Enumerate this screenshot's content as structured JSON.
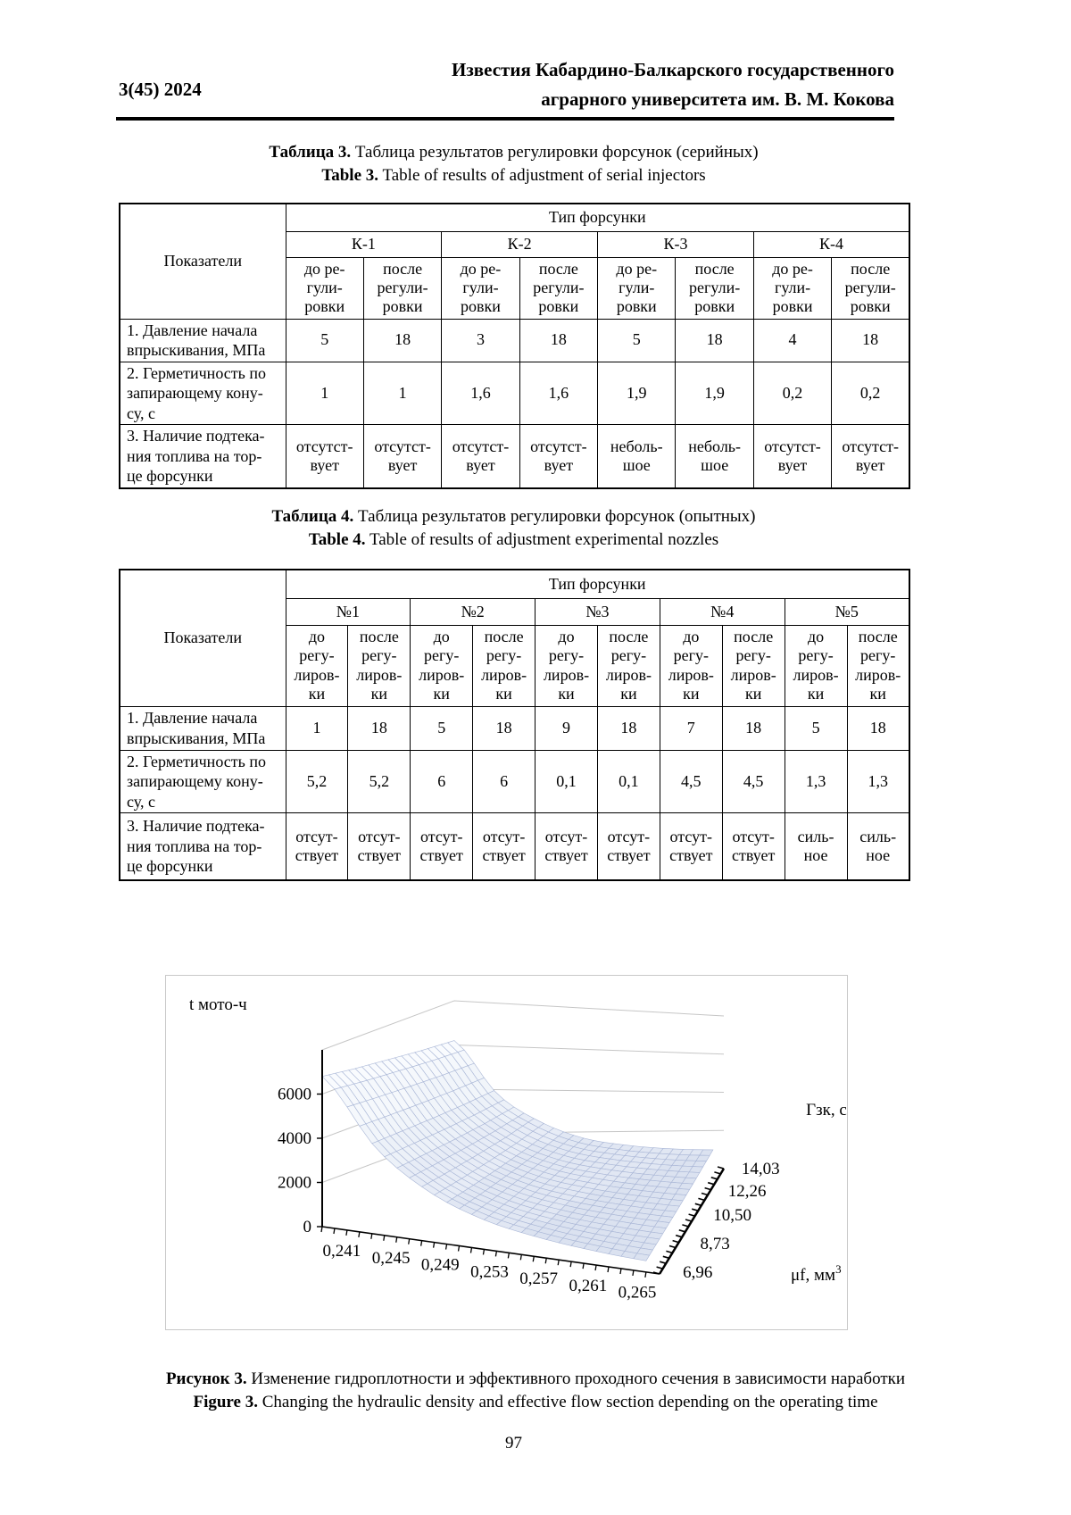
{
  "header": {
    "issue": "3(45) 2024",
    "journal_line1": "Известия Кабардино-Балкарского государственного",
    "journal_line2": "аграрного университета им. В. М. Кокова"
  },
  "table3": {
    "caption_ru_label": "Таблица 3.",
    "caption_ru_text": "Таблица результатов регулировки форсунок (серийных)",
    "caption_en_label": "Table 3.",
    "caption_en_text": "Table of results of adjustment of serial injectors",
    "stub_header": "Показатели",
    "span_header": "Тип форсунки",
    "groups": [
      "К-1",
      "К-2",
      "К-3",
      "К-4"
    ],
    "sub_headers": [
      "до ре-\nгули-\nровки",
      "после\nрегули-\nровки"
    ],
    "rows": [
      {
        "label": "1. Давление начала\nвпрыскивания, МПа",
        "values": [
          "5",
          "18",
          "3",
          "18",
          "5",
          "18",
          "4",
          "18"
        ]
      },
      {
        "label": "2. Герметичность по\nзапирающему кону-\nсу, с",
        "values": [
          "1",
          "1",
          "1,6",
          "1,6",
          "1,9",
          "1,9",
          "0,2",
          "0,2"
        ]
      },
      {
        "label": "3. Наличие подтека-\nния топлива на тор-\nце форсунки",
        "values": [
          "отсутст-\nвует",
          "отсутст-\nвует",
          "отсутст-\nвует",
          "отсутст-\nвует",
          "неболь-\nшое",
          "неболь-\nшое",
          "отсутст-\nвует",
          "отсутст-\nвует"
        ]
      }
    ]
  },
  "table4": {
    "caption_ru_label": "Таблица 4.",
    "caption_ru_text": "Таблица результатов регулировки форсунок (опытных)",
    "caption_en_label": "Table 4.",
    "caption_en_text": "Table of results of adjustment experimental nozzles",
    "stub_header": "Показатели",
    "span_header": "Тип форсунки",
    "groups": [
      "№1",
      "№2",
      "№3",
      "№4",
      "№5"
    ],
    "sub_headers": [
      "до\nрегу-\nлиров-\nки",
      "после\nрегу-\nлиров-\nки"
    ],
    "rows": [
      {
        "label": "1. Давление начала\nвпрыскивания, МПа",
        "values": [
          "1",
          "18",
          "5",
          "18",
          "9",
          "18",
          "7",
          "18",
          "5",
          "18"
        ]
      },
      {
        "label": "2. Герметичность по\nзапирающему кону-\nсу, с",
        "values": [
          "5,2",
          "5,2",
          "6",
          "6",
          "0,1",
          "0,1",
          "4,5",
          "4,5",
          "1,3",
          "1,3"
        ]
      },
      {
        "label": "3. Наличие подтека-\nния топлива на тор-\nце форсунки",
        "values": [
          "отсут-\nствует",
          "отсут-\nствует",
          "отсут-\nствует",
          "отсут-\nствует",
          "отсут-\nствует",
          "отсут-\nствует",
          "отсут-\nствует",
          "отсут-\nствует",
          "силь-\nное",
          "силь-\nное"
        ]
      }
    ]
  },
  "figure": {
    "caption_ru_label": "Рисунок 3.",
    "caption_ru_text": "Изменение гидроплотности и эффективного проходного сечения в зависимости наработки",
    "caption_en_label": "Figure 3.",
    "caption_en_text": "Changing the hydraulic density and effective flow section depending on the operating time"
  },
  "page_number": "97",
  "chart_data": {
    "type": "surface",
    "title": "",
    "zlabel": "t мото-ч",
    "ylabel": "Гзк, с",
    "xlabel": "μf, мм³",
    "xlabel_main": "μf, мм",
    "xlabel_sup": "3",
    "x_ticklabels": [
      "0,241",
      "0,245",
      "0,249",
      "0,253",
      "0,257",
      "0,261",
      "0,265"
    ],
    "x_values": [
      0.241,
      0.245,
      0.249,
      0.253,
      0.257,
      0.261,
      0.265
    ],
    "y_ticklabels": [
      "6,96",
      "8,73",
      "10,50",
      "12,26",
      "14,03"
    ],
    "y_values": [
      6.96,
      8.73,
      10.5,
      12.26,
      14.03
    ],
    "z_ticklabels": [
      "0",
      "2000",
      "4000",
      "6000"
    ],
    "z_axis_max": 8000,
    "matrix_note": "rows = y_values (Гзк, front to back), cols = x_values (μf); z = t, мото-ч (estimated from surface)",
    "z_matrix": [
      [
        6800,
        3900,
        2250,
        1350,
        900,
        650,
        520
      ],
      [
        6600,
        3850,
        2250,
        1380,
        950,
        720,
        600
      ],
      [
        6450,
        3800,
        2280,
        1450,
        1050,
        820,
        700
      ],
      [
        6300,
        3780,
        2350,
        1550,
        1170,
        950,
        830
      ],
      [
        6200,
        3800,
        2500,
        1700,
        1320,
        1100,
        1000
      ]
    ],
    "mesh_color": "#a9b6d6",
    "wall_grid_color": "#c6c6c6",
    "band_colors": [
      "#dbe2f0",
      "#e1e7f3",
      "#e7ecf6",
      "#ecf1f8",
      "#f1f5fa",
      "#f5f8fc",
      "#f9fbfe",
      "#fcfdff"
    ],
    "legend_position": "none",
    "grid": true
  }
}
